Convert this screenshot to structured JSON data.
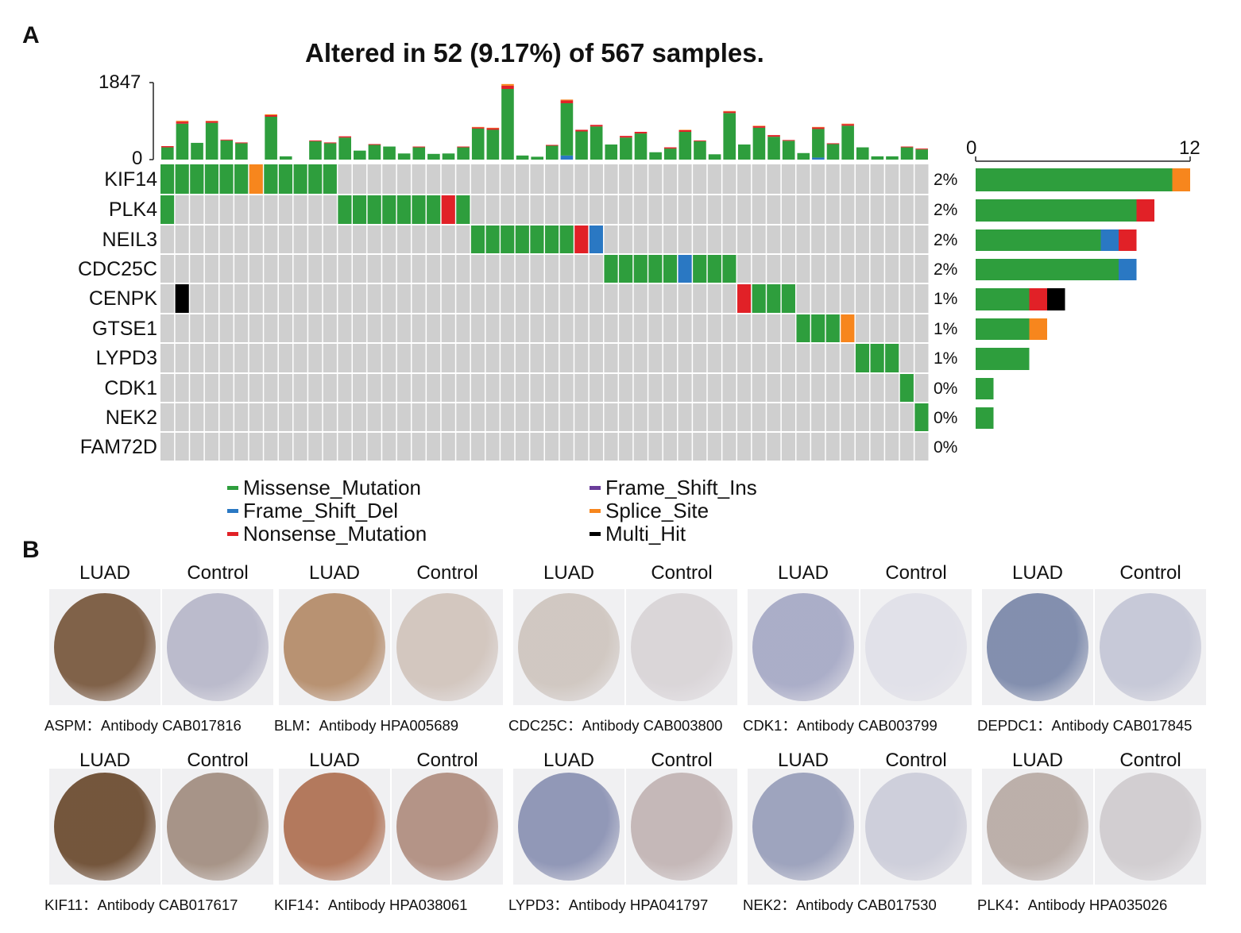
{
  "panel_a_label": "A",
  "panel_b_label": "B",
  "colors": {
    "Missense_Mutation": "#2e9e3d",
    "Frame_Shift_Del": "#2a78c3",
    "Nonsense_Mutation": "#e12127",
    "Frame_Shift_Ins": "#6a3d9a",
    "Splice_Site": "#f7861d",
    "Multi_Hit": "#000000",
    "none": "#cfcfcf"
  },
  "chart_data": {
    "type": "oncoplot",
    "title": "Altered in 52 (9.17%) of 567 samples.",
    "top_axis": {
      "min_label": "0",
      "max_label": "1847",
      "max": 1847
    },
    "right_axis": {
      "min_label": "0",
      "max_label": "12",
      "max": 12
    },
    "genes": [
      "KIF14",
      "PLK4",
      "NEIL3",
      "CDC25C",
      "CENPK",
      "GTSE1",
      "LYPD3",
      "CDK1",
      "NEK2",
      "FAM72D"
    ],
    "percentages": [
      "2%",
      "2%",
      "2%",
      "2%",
      "1%",
      "1%",
      "1%",
      "0%",
      "0%",
      "0%"
    ],
    "n_samples": 52,
    "tmb": [
      [
        300,
        0,
        30,
        0
      ],
      [
        880,
        0,
        50,
        20
      ],
      [
        410,
        0,
        0,
        0
      ],
      [
        900,
        0,
        40,
        10
      ],
      [
        470,
        0,
        20,
        0
      ],
      [
        400,
        0,
        20,
        0
      ],
      [
        0,
        0,
        0,
        0
      ],
      [
        1050,
        0,
        40,
        20
      ],
      [
        80,
        0,
        0,
        0
      ],
      [
        0,
        0,
        0,
        0
      ],
      [
        450,
        0,
        20,
        0
      ],
      [
        400,
        0,
        20,
        0
      ],
      [
        540,
        0,
        30,
        0
      ],
      [
        220,
        0,
        0,
        0
      ],
      [
        360,
        0,
        20,
        0
      ],
      [
        320,
        0,
        0,
        0
      ],
      [
        150,
        0,
        0,
        0
      ],
      [
        300,
        0,
        20,
        0
      ],
      [
        140,
        0,
        0,
        0
      ],
      [
        150,
        0,
        0,
        0
      ],
      [
        300,
        0,
        20,
        0
      ],
      [
        760,
        0,
        30,
        10
      ],
      [
        730,
        0,
        40,
        10
      ],
      [
        1730,
        0,
        80,
        40
      ],
      [
        100,
        0,
        0,
        0
      ],
      [
        70,
        0,
        0,
        0
      ],
      [
        340,
        0,
        20,
        0
      ],
      [
        1280,
        100,
        70,
        20
      ],
      [
        690,
        0,
        40,
        0
      ],
      [
        810,
        0,
        40,
        0
      ],
      [
        370,
        0,
        0,
        0
      ],
      [
        540,
        0,
        40,
        0
      ],
      [
        640,
        0,
        40,
        0
      ],
      [
        180,
        0,
        0,
        0
      ],
      [
        270,
        0,
        30,
        0
      ],
      [
        680,
        0,
        40,
        10
      ],
      [
        450,
        0,
        20,
        0
      ],
      [
        130,
        0,
        0,
        0
      ],
      [
        1140,
        0,
        40,
        10
      ],
      [
        370,
        0,
        0,
        0
      ],
      [
        780,
        0,
        40,
        10
      ],
      [
        560,
        0,
        40,
        0
      ],
      [
        460,
        0,
        20,
        0
      ],
      [
        160,
        0,
        0,
        0
      ],
      [
        700,
        50,
        40,
        10
      ],
      [
        380,
        0,
        20,
        0
      ],
      [
        830,
        0,
        40,
        10
      ],
      [
        300,
        0,
        0,
        0
      ],
      [
        80,
        0,
        0,
        0
      ],
      [
        80,
        0,
        0,
        0
      ],
      [
        300,
        0,
        20,
        0
      ],
      [
        250,
        0,
        20,
        0
      ]
    ],
    "cells": [
      [
        "M",
        0,
        6
      ],
      [
        "SS",
        6,
        7
      ],
      [
        "M",
        7,
        12
      ],
      [
        "M",
        0,
        1
      ],
      [
        "M",
        12,
        19
      ],
      [
        "N",
        19,
        20
      ],
      [
        "M",
        20,
        21
      ],
      [
        "M",
        21,
        28
      ],
      [
        "N",
        28,
        29
      ],
      [
        "FSD",
        29,
        30
      ],
      [
        "M",
        30,
        35
      ],
      [
        "FSD",
        35,
        36
      ],
      [
        "M",
        36,
        39
      ],
      [
        "MH",
        1,
        2
      ],
      [
        "N",
        39,
        40
      ],
      [
        "M",
        40,
        43
      ],
      [
        "M",
        43,
        46
      ],
      [
        "SS",
        46,
        47
      ],
      [
        "M",
        47,
        50
      ],
      [
        "M",
        50,
        51
      ],
      [
        "M",
        51,
        52
      ],
      []
    ],
    "row_cells": [
      [
        [
          "M",
          0,
          6
        ],
        [
          "SS",
          6,
          7
        ],
        [
          "M",
          7,
          12
        ]
      ],
      [
        [
          "M",
          0,
          1
        ],
        [
          "M",
          12,
          19
        ],
        [
          "N",
          19,
          20
        ],
        [
          "M",
          20,
          21
        ]
      ],
      [
        [
          "M",
          21,
          28
        ],
        [
          "N",
          28,
          29
        ],
        [
          "FSD",
          29,
          30
        ]
      ],
      [
        [
          "M",
          30,
          35
        ],
        [
          "FSD",
          35,
          36
        ],
        [
          "M",
          36,
          39
        ]
      ],
      [
        [
          "MH",
          1,
          2
        ],
        [
          "N",
          39,
          40
        ],
        [
          "M",
          40,
          43
        ]
      ],
      [
        [
          "M",
          43,
          46
        ],
        [
          "SS",
          46,
          47
        ]
      ],
      [
        [
          "M",
          47,
          50
        ]
      ],
      [
        [
          "M",
          50,
          51
        ]
      ],
      [
        [
          "M",
          51,
          52
        ]
      ],
      []
    ],
    "right_bars": [
      [
        [
          "Missense_Mutation",
          11
        ],
        [
          "Splice_Site",
          1
        ]
      ],
      [
        [
          "Missense_Mutation",
          9
        ],
        [
          "Nonsense_Mutation",
          1
        ]
      ],
      [
        [
          "Missense_Mutation",
          7
        ],
        [
          "Frame_Shift_Del",
          1
        ],
        [
          "Nonsense_Mutation",
          1
        ]
      ],
      [
        [
          "Missense_Mutation",
          8
        ],
        [
          "Frame_Shift_Del",
          1
        ]
      ],
      [
        [
          "Missense_Mutation",
          3
        ],
        [
          "Nonsense_Mutation",
          1
        ],
        [
          "Multi_Hit",
          1
        ]
      ],
      [
        [
          "Missense_Mutation",
          3
        ],
        [
          "Splice_Site",
          1
        ]
      ],
      [
        [
          "Missense_Mutation",
          3
        ]
      ],
      [
        [
          "Missense_Mutation",
          1
        ]
      ],
      [
        [
          "Missense_Mutation",
          1
        ]
      ],
      []
    ],
    "legend": [
      "Missense_Mutation",
      "Frame_Shift_Del",
      "Nonsense_Mutation",
      "Frame_Shift_Ins",
      "Splice_Site",
      "Multi_Hit"
    ]
  },
  "ihc": {
    "lbl_luad": "LUAD",
    "lbl_control": "Control",
    "row1": [
      {
        "caption": "ASPM：Antibody CAB017816",
        "luad": "#7a5a40",
        "ctrl": "#a9a9bf",
        "luad_img": "dark brown stained tissue core",
        "ctrl_img": "pale stained tissue core"
      },
      {
        "caption": "BLM：Antibody HPA005689",
        "luad": "#b58d6b",
        "ctrl": "#c9b9ae",
        "luad_img": "",
        "ctrl_img": ""
      },
      {
        "caption": "CDC25C：Antibody CAB003800",
        "luad": "#cfc6bf",
        "ctrl": "#d3cdd0",
        "luad_img": "",
        "ctrl_img": ""
      },
      {
        "caption": "CDK1：Antibody CAB003799",
        "luad": "#a7aac6",
        "ctrl": "#dcdce6",
        "luad_img": "",
        "ctrl_img": ""
      },
      {
        "caption": "DEPDC1：Antibody CAB017845",
        "luad": "#7d8aab",
        "ctrl": "#b9bccf",
        "luad_img": "",
        "ctrl_img": ""
      }
    ],
    "row2": [
      {
        "caption": "KIF11：Antibody CAB017617",
        "luad": "#6e4e33",
        "ctrl": "#8f7664",
        "luad_img": "",
        "ctrl_img": ""
      },
      {
        "caption": "KIF14：Antibody HPA038061",
        "luad": "#b07355",
        "ctrl": "#a07563",
        "luad_img": "",
        "ctrl_img": ""
      },
      {
        "caption": "LYPD3：Antibody HPA041797",
        "luad": "#8c93b4",
        "ctrl": "#b7a6a5",
        "luad_img": "",
        "ctrl_img": ""
      },
      {
        "caption": "NEK2：Antibody CAB017530",
        "luad": "#9aa0bb",
        "ctrl": "#c3c4d3",
        "luad_img": "",
        "ctrl_img": ""
      },
      {
        "caption": "PLK4：Antibody HPA035026",
        "luad": "#b9aca6",
        "ctrl": "#c8c3c6",
        "luad_img": "",
        "ctrl_img": ""
      }
    ]
  }
}
